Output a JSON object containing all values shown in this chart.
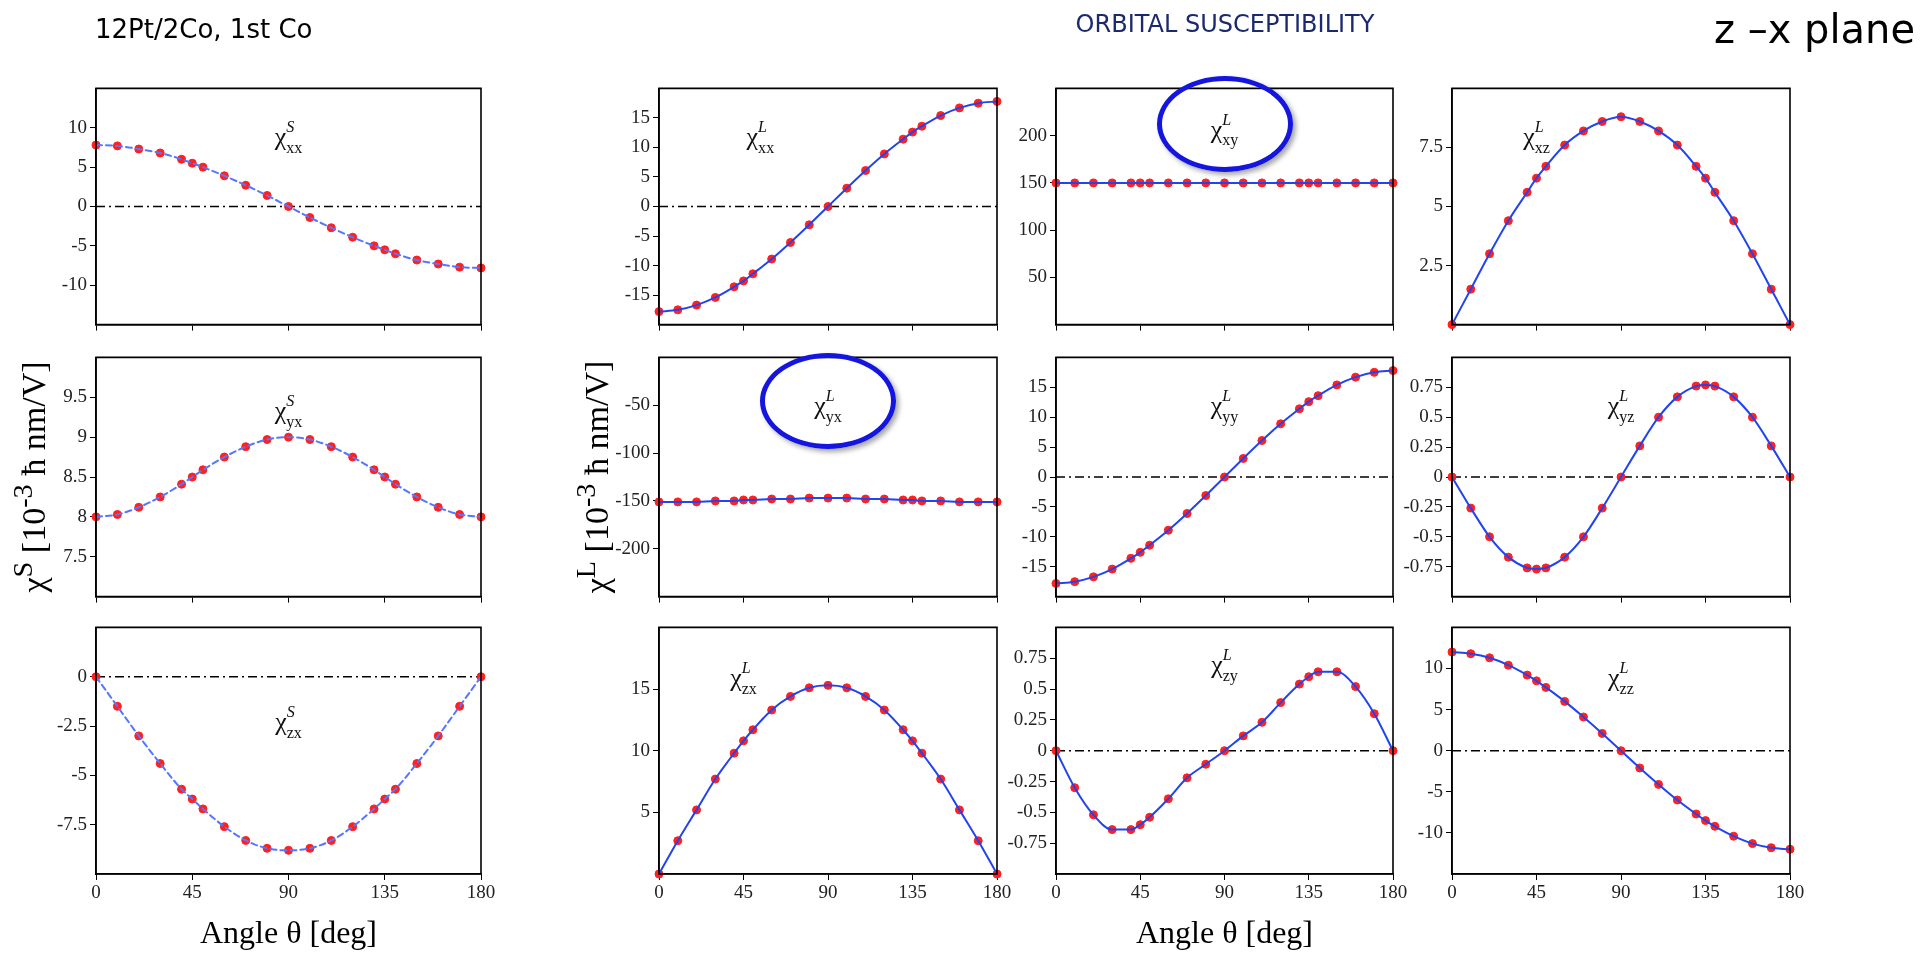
{
  "chart_data": [
    {
      "type": "line",
      "title": "12Pt/2Co, 1st Co",
      "x": [
        0,
        10,
        20,
        30,
        40,
        45,
        50,
        60,
        70,
        80,
        90,
        100,
        110,
        120,
        130,
        135,
        140,
        150,
        160,
        170,
        180
      ],
      "xlim": [
        0,
        180
      ],
      "xticks": [
        0,
        45,
        90,
        135,
        180
      ],
      "ylim": [
        -15,
        15
      ],
      "yticks": [
        -10,
        -5,
        0,
        5,
        10
      ],
      "tick_labels": "y",
      "grid": false,
      "annotations": [
        "χ$^{S}$$_{xx}$"
      ],
      "ref_lines": [
        {
          "axis": "y",
          "value": 0,
          "color": "#000000",
          "line_style": "dashed"
        }
      ],
      "series": [
        {
          "type": "line",
          "color": "#5577ff",
          "line_style": "dashed",
          "marker": "none",
          "values": [
            7.8,
            7.7,
            7.3,
            6.8,
            6,
            5.5,
            5,
            3.9,
            2.7,
            1.4,
            0,
            -1.4,
            -2.7,
            -3.9,
            -5,
            -5.5,
            -6,
            -6.8,
            -7.3,
            -7.7,
            -7.8
          ]
        },
        {
          "type": "scatter",
          "color": "#ff2020",
          "marker": "circle",
          "values": [
            7.8,
            7.7,
            7.3,
            6.8,
            6,
            5.5,
            5,
            3.9,
            2.7,
            1.4,
            0,
            -1.4,
            -2.7,
            -3.9,
            -5,
            -5.5,
            -6,
            -6.8,
            -7.3,
            -7.7,
            -7.8
          ]
        }
      ]
    },
    {
      "type": "line",
      "x": [
        0,
        10,
        20,
        30,
        40,
        45,
        50,
        60,
        70,
        80,
        90,
        100,
        110,
        120,
        130,
        135,
        140,
        150,
        160,
        170,
        180
      ],
      "xlim": [
        0,
        180
      ],
      "xticks": [
        0,
        45,
        90,
        135,
        180
      ],
      "ylim": [
        -20,
        20
      ],
      "yticks": [
        -15,
        -10,
        -5,
        0,
        5,
        10,
        15
      ],
      "tick_labels": "y",
      "grid": false,
      "annotations": [
        "χ$^{L}$$_{xx}$"
      ],
      "ref_lines": [
        {
          "axis": "y",
          "value": 0,
          "color": "#000000",
          "line_style": "dashed"
        }
      ],
      "series": [
        {
          "type": "line",
          "color": "#2244ee",
          "marker": "none",
          "values": [
            -17.8,
            -17.5,
            -16.7,
            -15.4,
            -13.6,
            -12.6,
            -11.4,
            -8.9,
            -6.1,
            -3.1,
            0,
            3.1,
            6.1,
            8.9,
            11.4,
            12.6,
            13.6,
            15.4,
            16.7,
            17.5,
            17.8
          ]
        },
        {
          "type": "scatter",
          "color": "#ff2020",
          "marker": "circle",
          "values": [
            -17.8,
            -17.5,
            -16.7,
            -15.4,
            -13.6,
            -12.6,
            -11.4,
            -8.9,
            -6.1,
            -3.1,
            0,
            3.1,
            6.1,
            8.9,
            11.4,
            12.6,
            13.6,
            15.4,
            16.7,
            17.5,
            17.8
          ]
        }
      ]
    },
    {
      "type": "line",
      "title": "ORBITAL SUSCEPTIBILITY",
      "x": [
        0,
        10,
        20,
        30,
        40,
        45,
        50,
        60,
        70,
        80,
        90,
        100,
        110,
        120,
        130,
        135,
        140,
        150,
        160,
        170,
        180
      ],
      "xlim": [
        0,
        180
      ],
      "xticks": [
        0,
        45,
        90,
        135,
        180
      ],
      "ylim": [
        0,
        250
      ],
      "yticks": [
        50,
        100,
        150,
        200
      ],
      "tick_labels": "y",
      "grid": false,
      "annotations": [
        "χ$^{L}$$_{xy}$"
      ],
      "series": [
        {
          "type": "line",
          "color": "#2244ee",
          "marker": "none",
          "values": [
            150,
            150,
            150,
            150,
            150,
            150,
            150,
            150,
            150,
            150,
            150,
            150,
            150,
            150,
            150,
            150,
            150,
            150,
            150,
            150,
            150
          ]
        },
        {
          "type": "scatter",
          "color": "#ff2020",
          "marker": "circle",
          "values": [
            150,
            150,
            150,
            150,
            150,
            150,
            150,
            150,
            150,
            150,
            150,
            150,
            150,
            150,
            150,
            150,
            150,
            150,
            150,
            150,
            150
          ]
        }
      ]
    },
    {
      "type": "line",
      "title": "z –x plane",
      "x": [
        0,
        10,
        20,
        30,
        40,
        45,
        50,
        60,
        70,
        80,
        90,
        100,
        110,
        120,
        130,
        135,
        140,
        150,
        160,
        170,
        180
      ],
      "xlim": [
        0,
        180
      ],
      "xticks": [
        0,
        45,
        90,
        135,
        180
      ],
      "ylim": [
        0,
        10
      ],
      "yticks": [
        2.5,
        5,
        7.5
      ],
      "tick_labels": "y",
      "grid": false,
      "annotations": [
        "χ$^{L}$$_{xz}$"
      ],
      "series": [
        {
          "type": "line",
          "color": "#2244ee",
          "marker": "none",
          "values": [
            0,
            1.5,
            3,
            4.4,
            5.6,
            6.2,
            6.7,
            7.6,
            8.2,
            8.6,
            8.8,
            8.6,
            8.2,
            7.6,
            6.7,
            6.2,
            5.6,
            4.4,
            3,
            1.5,
            0
          ]
        },
        {
          "type": "scatter",
          "color": "#ff2020",
          "marker": "circle",
          "values": [
            0,
            1.5,
            3,
            4.4,
            5.6,
            6.2,
            6.7,
            7.6,
            8.2,
            8.6,
            8.8,
            8.6,
            8.2,
            7.6,
            6.7,
            6.2,
            5.6,
            4.4,
            3,
            1.5,
            0
          ]
        }
      ]
    },
    {
      "type": "line",
      "ylabel": "χ$^{S}$ [10$^{-3}$ ħ nm/V]",
      "x": [
        0,
        10,
        20,
        30,
        40,
        45,
        50,
        60,
        70,
        80,
        90,
        100,
        110,
        120,
        130,
        135,
        140,
        150,
        160,
        170,
        180
      ],
      "xlim": [
        0,
        180
      ],
      "xticks": [
        0,
        45,
        90,
        135,
        180
      ],
      "ylim": [
        7,
        10
      ],
      "yticks": [
        7.5,
        8,
        8.5,
        9,
        9.5
      ],
      "tick_labels": "y",
      "grid": false,
      "annotations": [
        "χ$^{S}$$_{yx}$"
      ],
      "series": [
        {
          "type": "line",
          "color": "#5577ff",
          "line_style": "dashed",
          "marker": "none",
          "values": [
            8,
            8.03,
            8.12,
            8.25,
            8.41,
            8.5,
            8.59,
            8.75,
            8.88,
            8.97,
            9,
            8.97,
            8.88,
            8.75,
            8.59,
            8.5,
            8.41,
            8.25,
            8.12,
            8.03,
            8
          ]
        },
        {
          "type": "scatter",
          "color": "#ff2020",
          "marker": "circle",
          "values": [
            8,
            8.03,
            8.12,
            8.25,
            8.41,
            8.5,
            8.59,
            8.75,
            8.88,
            8.97,
            9,
            8.97,
            8.88,
            8.75,
            8.59,
            8.5,
            8.41,
            8.25,
            8.12,
            8.03,
            8
          ]
        }
      ]
    },
    {
      "type": "line",
      "ylabel": "χ$^{L}$ [10$^{-3}$ ħ nm/V]",
      "x": [
        0,
        10,
        20,
        30,
        40,
        45,
        50,
        60,
        70,
        80,
        90,
        100,
        110,
        120,
        130,
        135,
        140,
        150,
        160,
        170,
        180
      ],
      "xlim": [
        0,
        180
      ],
      "xticks": [
        0,
        45,
        90,
        135,
        180
      ],
      "ylim": [
        -250,
        0
      ],
      "yticks": [
        -200,
        -150,
        -100,
        -50
      ],
      "tick_labels": "y",
      "grid": false,
      "annotations": [
        "χ$^{L}$$_{yx}$"
      ],
      "series": [
        {
          "type": "line",
          "color": "#2244ee",
          "marker": "none",
          "values": [
            -151,
            -151,
            -151,
            -150,
            -150,
            -149,
            -149,
            -148,
            -148,
            -147,
            -147,
            -147,
            -148,
            -148,
            -149,
            -149,
            -150,
            -150,
            -151,
            -151,
            -151
          ]
        },
        {
          "type": "scatter",
          "color": "#ff2020",
          "marker": "circle",
          "values": [
            -151,
            -151,
            -151,
            -150,
            -150,
            -149,
            -149,
            -148,
            -148,
            -147,
            -147,
            -147,
            -148,
            -148,
            -149,
            -149,
            -150,
            -150,
            -151,
            -151,
            -151
          ]
        }
      ]
    },
    {
      "type": "line",
      "x": [
        0,
        10,
        20,
        30,
        40,
        45,
        50,
        60,
        70,
        80,
        90,
        100,
        110,
        120,
        130,
        135,
        140,
        150,
        160,
        170,
        180
      ],
      "xlim": [
        0,
        180
      ],
      "xticks": [
        0,
        45,
        90,
        135,
        180
      ],
      "ylim": [
        -20,
        20
      ],
      "yticks": [
        -15,
        -10,
        -5,
        0,
        5,
        10,
        15
      ],
      "tick_labels": "y",
      "grid": false,
      "annotations": [
        "χ$^{L}$$_{yy}$"
      ],
      "ref_lines": [
        {
          "axis": "y",
          "value": 0,
          "color": "#000000",
          "line_style": "dashed"
        }
      ],
      "series": [
        {
          "type": "line",
          "color": "#2244ee",
          "marker": "none",
          "values": [
            -17.8,
            -17.5,
            -16.7,
            -15.4,
            -13.6,
            -12.6,
            -11.4,
            -8.9,
            -6.1,
            -3.1,
            0,
            3.1,
            6.1,
            8.9,
            11.4,
            12.6,
            13.6,
            15.4,
            16.7,
            17.5,
            17.8
          ]
        },
        {
          "type": "scatter",
          "color": "#ff2020",
          "marker": "circle",
          "values": [
            -17.8,
            -17.5,
            -16.7,
            -15.4,
            -13.6,
            -12.6,
            -11.4,
            -8.9,
            -6.1,
            -3.1,
            0,
            3.1,
            6.1,
            8.9,
            11.4,
            12.6,
            13.6,
            15.4,
            16.7,
            17.5,
            17.8
          ]
        }
      ]
    },
    {
      "type": "line",
      "x": [
        0,
        10,
        20,
        30,
        40,
        45,
        50,
        60,
        70,
        80,
        90,
        100,
        110,
        120,
        130,
        135,
        140,
        150,
        160,
        170,
        180
      ],
      "xlim": [
        0,
        180
      ],
      "xticks": [
        0,
        45,
        90,
        135,
        180
      ],
      "ylim": [
        -1,
        1
      ],
      "yticks": [
        -0.75,
        -0.5,
        -0.25,
        0,
        0.25,
        0.5,
        0.75
      ],
      "tick_labels": "y",
      "grid": false,
      "annotations": [
        "χ$^{L}$$_{yz}$"
      ],
      "ref_lines": [
        {
          "axis": "y",
          "value": 0,
          "color": "#000000",
          "line_style": "dashed"
        }
      ],
      "series": [
        {
          "type": "line",
          "color": "#2244ee",
          "marker": "none",
          "values": [
            0,
            -0.26,
            -0.5,
            -0.67,
            -0.76,
            -0.77,
            -0.76,
            -0.67,
            -0.5,
            -0.26,
            0,
            0.26,
            0.5,
            0.67,
            0.76,
            0.77,
            0.76,
            0.67,
            0.5,
            0.26,
            0
          ]
        },
        {
          "type": "scatter",
          "color": "#ff2020",
          "marker": "circle",
          "values": [
            0,
            -0.26,
            -0.5,
            -0.67,
            -0.76,
            -0.77,
            -0.76,
            -0.67,
            -0.5,
            -0.26,
            0,
            0.26,
            0.5,
            0.67,
            0.76,
            0.77,
            0.76,
            0.67,
            0.5,
            0.26,
            0
          ]
        }
      ]
    },
    {
      "type": "line",
      "xlabel": "Angle θ [deg]",
      "x": [
        0,
        10,
        20,
        30,
        40,
        45,
        50,
        60,
        70,
        80,
        90,
        100,
        110,
        120,
        130,
        135,
        140,
        150,
        160,
        170,
        180
      ],
      "xlim": [
        0,
        180
      ],
      "xticks": [
        0,
        45,
        90,
        135,
        180
      ],
      "ylim": [
        -10,
        2.5
      ],
      "yticks": [
        -7.5,
        -5,
        -2.5,
        0
      ],
      "grid": false,
      "annotations": [
        "χ$^{S}$$_{zx}$"
      ],
      "ref_lines": [
        {
          "axis": "y",
          "value": 0,
          "color": "#000000",
          "line_style": "dashed"
        }
      ],
      "series": [
        {
          "type": "line",
          "color": "#5577ff",
          "line_style": "dashed",
          "marker": "none",
          "values": [
            0,
            -1.5,
            -3,
            -4.4,
            -5.7,
            -6.2,
            -6.7,
            -7.6,
            -8.3,
            -8.7,
            -8.8,
            -8.7,
            -8.3,
            -7.6,
            -6.7,
            -6.2,
            -5.7,
            -4.4,
            -3,
            -1.5,
            0
          ]
        },
        {
          "type": "scatter",
          "color": "#ff2020",
          "marker": "circle",
          "values": [
            0,
            -1.5,
            -3,
            -4.4,
            -5.7,
            -6.2,
            -6.7,
            -7.6,
            -8.3,
            -8.7,
            -8.8,
            -8.7,
            -8.3,
            -7.6,
            -6.7,
            -6.2,
            -5.7,
            -4.4,
            -3,
            -1.5,
            0
          ]
        }
      ]
    },
    {
      "type": "line",
      "x": [
        0,
        10,
        20,
        30,
        40,
        45,
        50,
        60,
        70,
        80,
        90,
        100,
        110,
        120,
        130,
        135,
        140,
        150,
        160,
        170,
        180
      ],
      "xlim": [
        0,
        180
      ],
      "xticks": [
        0,
        45,
        90,
        135,
        180
      ],
      "ylim": [
        0,
        20
      ],
      "yticks": [
        5,
        10,
        15
      ],
      "grid": false,
      "annotations": [
        "χ$^{L}$$_{zx}$"
      ],
      "series": [
        {
          "type": "line",
          "color": "#2244ee",
          "marker": "none",
          "values": [
            0,
            2.7,
            5.2,
            7.7,
            9.8,
            10.8,
            11.7,
            13.3,
            14.4,
            15.1,
            15.3,
            15.1,
            14.4,
            13.3,
            11.7,
            10.8,
            9.8,
            7.7,
            5.2,
            2.7,
            0
          ]
        },
        {
          "type": "scatter",
          "color": "#ff2020",
          "marker": "circle",
          "values": [
            0,
            2.7,
            5.2,
            7.7,
            9.8,
            10.8,
            11.7,
            13.3,
            14.4,
            15.1,
            15.3,
            15.1,
            14.4,
            13.3,
            11.7,
            10.8,
            9.8,
            7.7,
            5.2,
            2.7,
            0
          ]
        }
      ]
    },
    {
      "type": "line",
      "xlabel": "Angle θ [deg]",
      "x": [
        0,
        10,
        20,
        30,
        40,
        45,
        50,
        60,
        70,
        80,
        90,
        100,
        110,
        120,
        130,
        135,
        140,
        150,
        160,
        170,
        180
      ],
      "xlim": [
        0,
        180
      ],
      "xticks": [
        0,
        45,
        90,
        135,
        180
      ],
      "ylim": [
        -1,
        1
      ],
      "yticks": [
        -0.75,
        -0.5,
        -0.25,
        0,
        0.25,
        0.5,
        0.75
      ],
      "grid": false,
      "annotations": [
        "χ$^{L}$$_{zy}$"
      ],
      "ref_lines": [
        {
          "axis": "y",
          "value": 0,
          "color": "#000000",
          "line_style": "dashed"
        }
      ],
      "series": [
        {
          "type": "line",
          "color": "#2244ee",
          "marker": "none",
          "values": [
            0,
            -0.3,
            -0.52,
            -0.64,
            -0.64,
            -0.6,
            -0.54,
            -0.39,
            -0.22,
            -0.11,
            0,
            0.12,
            0.23,
            0.39,
            0.54,
            0.6,
            0.64,
            0.64,
            0.52,
            0.3,
            0
          ]
        },
        {
          "type": "scatter",
          "color": "#ff2020",
          "marker": "circle",
          "values": [
            0,
            -0.3,
            -0.52,
            -0.64,
            -0.64,
            -0.6,
            -0.54,
            -0.39,
            -0.22,
            -0.11,
            0,
            0.12,
            0.23,
            0.39,
            0.54,
            0.6,
            0.64,
            0.64,
            0.52,
            0.3,
            0
          ]
        }
      ]
    },
    {
      "type": "line",
      "x": [
        0,
        10,
        20,
        30,
        40,
        45,
        50,
        60,
        70,
        80,
        90,
        100,
        110,
        120,
        130,
        135,
        140,
        150,
        160,
        170,
        180
      ],
      "xlim": [
        0,
        180
      ],
      "xticks": [
        0,
        45,
        90,
        135,
        180
      ],
      "ylim": [
        -15,
        15
      ],
      "yticks": [
        -10,
        -5,
        0,
        5,
        10
      ],
      "grid": false,
      "annotations": [
        "χ$^{L}$$_{zz}$"
      ],
      "ref_lines": [
        {
          "axis": "y",
          "value": 0,
          "color": "#000000",
          "line_style": "dashed"
        }
      ],
      "series": [
        {
          "type": "line",
          "color": "#2244ee",
          "marker": "none",
          "values": [
            12,
            11.8,
            11.3,
            10.4,
            9.2,
            8.5,
            7.7,
            6,
            4.1,
            2.1,
            0,
            -2.1,
            -4.1,
            -6,
            -7.7,
            -8.5,
            -9.2,
            -10.4,
            -11.3,
            -11.8,
            -12
          ]
        },
        {
          "type": "scatter",
          "color": "#ff2020",
          "marker": "circle",
          "values": [
            12,
            11.8,
            11.3,
            10.4,
            9.2,
            8.5,
            7.7,
            6,
            4.1,
            2.1,
            0,
            -2.1,
            -4.1,
            -6,
            -7.7,
            -8.5,
            -9.2,
            -10.4,
            -11.3,
            -11.8,
            -12
          ]
        }
      ]
    }
  ]
}
